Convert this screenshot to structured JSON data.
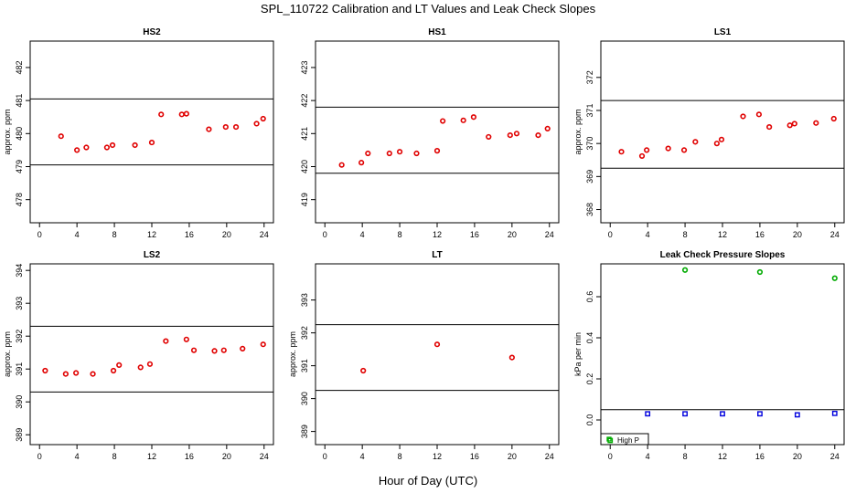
{
  "title": "SPL_110722  Calibration and LT Values and Leak Check Slopes",
  "xlabel": "Hour of Day (UTC)",
  "colors": {
    "red": "#e00000",
    "green": "#00aa00",
    "blue": "#0000dd",
    "axis": "#000000"
  },
  "chart_data": [
    {
      "type": "scatter",
      "title": "HS2",
      "ylabel": "approx. ppm",
      "xlim": [
        -1,
        25
      ],
      "ylim": [
        477.3,
        482.8
      ],
      "xticks": [
        0,
        4,
        8,
        12,
        16,
        20,
        24
      ],
      "yticks": [
        478,
        479,
        480,
        481,
        482
      ],
      "hlines": [
        479.05,
        481.05
      ],
      "series": [
        {
          "color": "red",
          "marker": "circle",
          "x": [
            2.3,
            4.0,
            5.0,
            7.2,
            7.8,
            10.2,
            12.0,
            13.0,
            15.2,
            15.7,
            18.1,
            19.9,
            21.0,
            23.2,
            23.9
          ],
          "y": [
            479.92,
            479.5,
            479.58,
            479.58,
            479.65,
            479.65,
            479.73,
            480.58,
            480.58,
            480.6,
            480.13,
            480.2,
            480.2,
            480.3,
            480.45
          ]
        }
      ]
    },
    {
      "type": "scatter",
      "title": "HS1",
      "ylabel": "",
      "xlim": [
        -1,
        25
      ],
      "ylim": [
        418.3,
        423.8
      ],
      "xticks": [
        0,
        4,
        8,
        12,
        16,
        20,
        24
      ],
      "yticks": [
        419,
        420,
        421,
        422,
        423
      ],
      "hlines": [
        419.8,
        421.8
      ],
      "series": [
        {
          "color": "red",
          "marker": "circle",
          "x": [
            1.8,
            3.9,
            4.6,
            6.9,
            8.0,
            9.8,
            12.0,
            12.6,
            14.8,
            15.9,
            17.5,
            19.8,
            20.5,
            22.8,
            23.8
          ],
          "y": [
            420.05,
            420.12,
            420.4,
            420.4,
            420.45,
            420.4,
            420.48,
            421.38,
            421.4,
            421.5,
            420.9,
            420.95,
            421.0,
            420.95,
            421.15
          ]
        }
      ]
    },
    {
      "type": "scatter",
      "title": "LS1",
      "ylabel": "approx. ppm",
      "xlim": [
        -1,
        25
      ],
      "ylim": [
        367.6,
        373.1
      ],
      "xticks": [
        0,
        4,
        8,
        12,
        16,
        20,
        24
      ],
      "yticks": [
        368,
        369,
        370,
        371,
        372
      ],
      "hlines": [
        369.25,
        371.3
      ],
      "series": [
        {
          "color": "red",
          "marker": "circle",
          "x": [
            1.2,
            3.4,
            3.9,
            6.2,
            7.9,
            9.1,
            11.4,
            11.9,
            14.2,
            15.9,
            17.0,
            19.2,
            19.7,
            22.0,
            23.9
          ],
          "y": [
            369.75,
            369.62,
            369.8,
            369.85,
            369.8,
            370.05,
            370.0,
            370.12,
            370.82,
            370.88,
            370.5,
            370.55,
            370.6,
            370.62,
            370.75
          ]
        }
      ]
    },
    {
      "type": "scatter",
      "title": "LS2",
      "ylabel": "approx. ppm",
      "xlim": [
        -1,
        25
      ],
      "ylim": [
        388.7,
        394.2
      ],
      "xticks": [
        0,
        4,
        8,
        12,
        16,
        20,
        24
      ],
      "yticks": [
        389,
        390,
        391,
        392,
        393,
        394
      ],
      "hlines": [
        390.3,
        392.3
      ],
      "series": [
        {
          "color": "red",
          "marker": "circle",
          "x": [
            0.6,
            2.8,
            3.9,
            5.7,
            7.9,
            8.5,
            10.8,
            11.8,
            13.5,
            15.7,
            16.5,
            18.7,
            19.7,
            21.7,
            23.9
          ],
          "y": [
            390.95,
            390.85,
            390.88,
            390.85,
            390.95,
            391.12,
            391.05,
            391.15,
            391.85,
            391.9,
            391.57,
            391.55,
            391.57,
            391.62,
            391.75
          ]
        }
      ]
    },
    {
      "type": "scatter",
      "title": "LT",
      "ylabel": "approx. ppm",
      "xlim": [
        -1,
        25
      ],
      "ylim": [
        388.6,
        394.1
      ],
      "xticks": [
        0,
        4,
        8,
        12,
        16,
        20,
        24
      ],
      "yticks": [
        389,
        390,
        391,
        392,
        393
      ],
      "hlines": [
        390.25,
        392.25
      ],
      "series": [
        {
          "color": "red",
          "marker": "circle",
          "x": [
            4.1,
            12.0,
            20.0
          ],
          "y": [
            390.85,
            391.65,
            391.25
          ]
        }
      ]
    },
    {
      "type": "scatter",
      "title": "Leak Check Pressure Slopes",
      "ylabel": "kPa per min",
      "xlim": [
        -1,
        25
      ],
      "ylim": [
        -0.12,
        0.76
      ],
      "xticks": [
        0,
        4,
        8,
        12,
        16,
        20,
        24
      ],
      "yticks": [
        0.0,
        0.2,
        0.4,
        0.6
      ],
      "hlines": [
        0.05
      ],
      "series": [
        {
          "color": "green",
          "marker": "circle",
          "x": [
            8.0,
            16.0,
            24.0
          ],
          "y": [
            0.73,
            0.72,
            0.69
          ]
        },
        {
          "color": "blue",
          "marker": "square",
          "x": [
            4.0,
            8.0,
            12.0,
            16.0,
            20.0,
            24.0
          ],
          "y": [
            0.03,
            0.03,
            0.03,
            0.03,
            0.025,
            0.032
          ]
        },
        {
          "color": "green",
          "marker": "square",
          "x": [
            0.0
          ],
          "y": [
            -0.1
          ]
        }
      ],
      "legend": {
        "position": "bottom-left",
        "label": "High P",
        "marker": "square",
        "color": "green"
      }
    }
  ]
}
